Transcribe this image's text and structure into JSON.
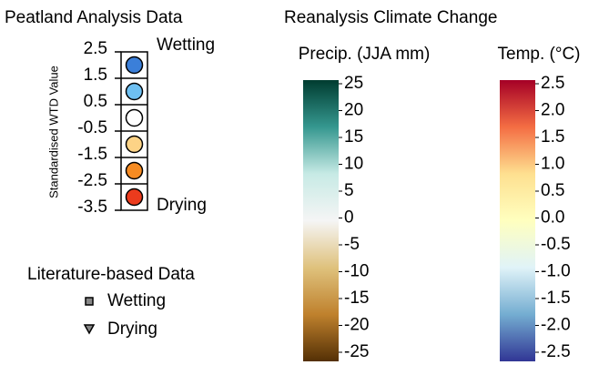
{
  "peatland": {
    "title": "Peatland Analysis Data",
    "axis_label": "Standardised WTD Value",
    "ticks": [
      "2.5",
      "1.5",
      "0.5",
      "-0.5",
      "-1.5",
      "-2.5",
      "-3.5"
    ],
    "top_label": "Wetting",
    "bottom_label": "Drying",
    "colors": [
      "#3b7fd9",
      "#6ec0f2",
      "#ffffff",
      "#fdd386",
      "#f68b22",
      "#ec3b1d"
    ]
  },
  "literature": {
    "title": "Literature-based Data",
    "items": [
      {
        "label": "Wetting"
      },
      {
        "label": "Drying"
      }
    ]
  },
  "reanalysis": {
    "title": "Reanalysis Climate Change",
    "precip": {
      "label": "Precip. (JJA mm)",
      "ticks": [
        "25",
        "20",
        "15",
        "10",
        "5",
        "0",
        "-5",
        "-10",
        "-15",
        "-20",
        "-25"
      ],
      "colors": [
        "#003c30",
        "#35978f",
        "#c7eae5",
        "#f5f5f5",
        "#dfc27d",
        "#bf812d",
        "#543005"
      ]
    },
    "temp": {
      "label": "Temp. (°C)",
      "ticks": [
        "2.5",
        "2.0",
        "1.5",
        "1.0",
        "0.5",
        "0.0",
        "-0.5",
        "-1.0",
        "-1.5",
        "-2.0",
        "-2.5"
      ],
      "colors": [
        "#a50026",
        "#f46d43",
        "#fee090",
        "#ffffbf",
        "#e0f3f8",
        "#74add1",
        "#313695"
      ]
    }
  }
}
